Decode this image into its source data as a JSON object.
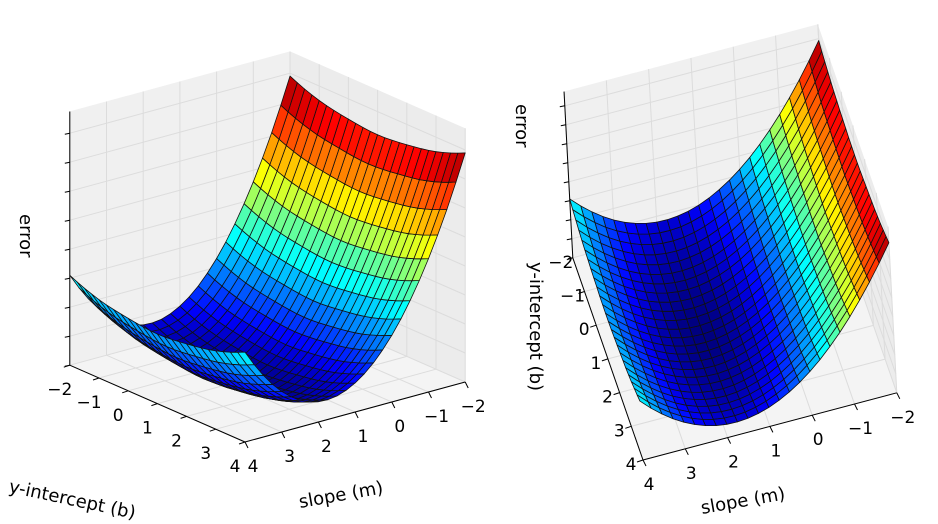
{
  "chart_data": [
    {
      "type": "surface",
      "title": "",
      "xlabel": "slope (m)",
      "ylabel": "y-intercept (b)",
      "zlabel": "error",
      "colormap": "jet",
      "grid": true,
      "xlim": [
        -2,
        4
      ],
      "ylim": [
        -2,
        4
      ],
      "x_ticks": [
        "−2",
        "−1",
        "0",
        "1",
        "2",
        "3",
        "4"
      ],
      "y_ticks": [
        "−2",
        "−1",
        "0",
        "1",
        "2",
        "3",
        "4"
      ],
      "x": [
        -2,
        -1,
        0,
        1,
        2,
        3,
        4
      ],
      "y": [
        -2,
        -1,
        0,
        1,
        2,
        3,
        4
      ],
      "z": [
        [
          158,
          92,
          46,
          20,
          14,
          28,
          62
        ],
        [
          150,
          84,
          38,
          12,
          6,
          20,
          54
        ],
        [
          146,
          80,
          34,
          8,
          2,
          16,
          50
        ],
        [
          144,
          78,
          32,
          6,
          0,
          14,
          48
        ],
        [
          146,
          80,
          34,
          8,
          2,
          16,
          50
        ],
        [
          150,
          84,
          38,
          12,
          6,
          20,
          54
        ],
        [
          158,
          92,
          46,
          20,
          14,
          28,
          62
        ]
      ]
    },
    {
      "type": "surface",
      "title": "",
      "xlabel": "slope (m)",
      "ylabel": "y-intercept (b)",
      "zlabel": "error",
      "colormap": "jet",
      "grid": true,
      "xlim": [
        -2,
        4
      ],
      "ylim": [
        -2,
        4
      ],
      "x_ticks": [
        "−2",
        "−1",
        "0",
        "1",
        "2",
        "3",
        "4"
      ],
      "y_ticks": [
        "−2",
        "−1",
        "0",
        "1",
        "2",
        "3",
        "4"
      ],
      "x": [
        -2,
        -1,
        0,
        1,
        2,
        3,
        4
      ],
      "y": [
        -2,
        -1,
        0,
        1,
        2,
        3,
        4
      ],
      "z": [
        [
          158,
          92,
          46,
          20,
          14,
          28,
          62
        ],
        [
          150,
          84,
          38,
          12,
          6,
          20,
          54
        ],
        [
          146,
          80,
          34,
          8,
          2,
          16,
          50
        ],
        [
          144,
          78,
          32,
          6,
          0,
          14,
          48
        ],
        [
          146,
          80,
          34,
          8,
          2,
          16,
          50
        ],
        [
          150,
          84,
          38,
          12,
          6,
          20,
          54
        ],
        [
          158,
          92,
          46,
          20,
          14,
          28,
          62
        ]
      ]
    }
  ]
}
